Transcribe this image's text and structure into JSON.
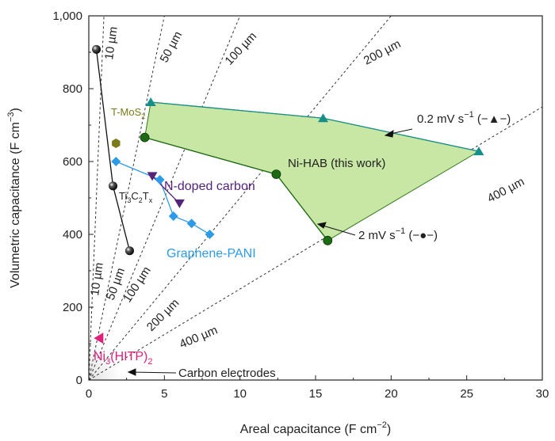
{
  "chart_data": {
    "type": "scatter",
    "xlabel_main": "Areal capacitance (F cm",
    "xlabel_sup": "−2",
    "xlabel_end": ")",
    "ylabel_main": "Volumetric capacitance (F cm",
    "ylabel_sup": "−3",
    "ylabel_end": ")",
    "xlim": [
      0,
      30
    ],
    "ylim": [
      0,
      1000
    ],
    "x_ticks": [
      0,
      5,
      10,
      15,
      20,
      25,
      30
    ],
    "x_tick_labels": [
      "0",
      "5",
      "10",
      "15",
      "20",
      "25",
      "30"
    ],
    "y_ticks": [
      0,
      200,
      400,
      600,
      800,
      1000
    ],
    "y_tick_labels": [
      "0",
      "200",
      "400",
      "600",
      "800",
      "1,000"
    ],
    "thickness_lines": [
      {
        "name": "10 µm",
        "slope": 1000
      },
      {
        "name": "50 µm",
        "slope": 200
      },
      {
        "name": "100 µm",
        "slope": 100
      },
      {
        "name": "200 µm",
        "slope": 50
      },
      {
        "name": "400 µm",
        "slope": 25
      }
    ],
    "thickness_labels": {
      "top_10": "10 µm",
      "top_50": "50 µm",
      "top_100": "100 µm",
      "top_200": "200 µm",
      "top_400": "400 µm",
      "bot_10": "10 µm",
      "bot_50": "50 µm",
      "bot_100": "100 µm",
      "bot_200": "200 µm",
      "bot_400": "400 µm"
    },
    "nihab_region": [
      [
        4.1,
        763
      ],
      [
        15.5,
        719
      ],
      [
        25.8,
        628
      ],
      [
        15.8,
        383
      ],
      [
        12.4,
        565
      ],
      [
        3.7,
        666
      ]
    ],
    "series": [
      {
        "name": "Ni-HAB 0.2 mV s−1",
        "marker": "triangle",
        "color": "#168f8a",
        "x": [
          4.1,
          15.5,
          25.8
        ],
        "y": [
          763,
          719,
          628
        ]
      },
      {
        "name": "Ni-HAB 2 mV s−1",
        "marker": "circle",
        "color": "#1d6a14",
        "x": [
          3.7,
          12.4,
          15.8
        ],
        "y": [
          666,
          565,
          383
        ]
      },
      {
        "name": "Ti3C2Tx",
        "marker": "sphere",
        "color": "#111111",
        "x": [
          0.5,
          1.6,
          2.7
        ],
        "y": [
          908,
          533,
          355
        ]
      },
      {
        "name": "Graphene-PANI",
        "marker": "diamond",
        "color": "#2e9be6",
        "x": [
          1.8,
          4.7,
          5.6,
          6.8,
          8.0
        ],
        "y": [
          600,
          550,
          450,
          430,
          400
        ]
      },
      {
        "name": "N-doped carbon",
        "marker": "triangle-down",
        "color": "#55237a",
        "x": [
          4.2,
          6.0
        ],
        "y": [
          560,
          485
        ]
      },
      {
        "name": "T-MoS2",
        "marker": "hexagon",
        "color": "#7a7a1a",
        "x": [
          1.8
        ],
        "y": [
          650
        ]
      },
      {
        "name": "Ni3(HITP)2",
        "marker": "triangle-left",
        "color": "#e0207a",
        "x": [
          0.7
        ],
        "y": [
          115
        ]
      }
    ],
    "labels": {
      "nihab": "Ni-HAB (this work)",
      "rate_fast_pre": "0.2 mV s",
      "rate_fast_sup": "−1",
      "rate_fast_post": " (−▲−)",
      "rate_slow_pre": "2 mV s",
      "rate_slow_sup": "−1",
      "rate_slow_post": " (−●−)",
      "tmos2_pre": "T-MoS",
      "tmos2_sub": "2",
      "ti3c2tx_pre": "Ti",
      "ti3c2tx_sub1": "3",
      "ti3c2tx_mid": "C",
      "ti3c2tx_sub2": "2",
      "ti3c2tx_mid2": "T",
      "ti3c2tx_sub3": "x",
      "ndoped": "N-doped carbon",
      "graphene_pani": "Graphene-PANI",
      "nihitp_pre": "Ni",
      "nihitp_sub1": "3",
      "nihitp_mid": "(HITP)",
      "nihitp_sub2": "2",
      "carbon": "Carbon electrodes"
    },
    "colors": {
      "region_fill": "#c8e6a4",
      "region_stroke": "#2f7a1a",
      "ndoped_text": "#55237a",
      "pani_text": "#2e9be6",
      "tmos2_text": "#7a7a1a",
      "nihitp_text": "#e0207a"
    }
  }
}
